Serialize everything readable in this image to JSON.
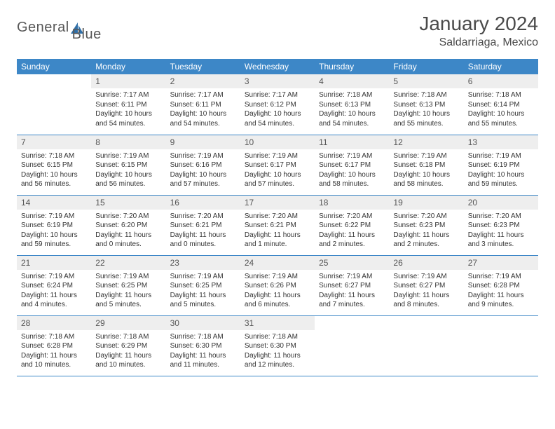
{
  "logo": {
    "part1": "General",
    "part2": "Blue"
  },
  "title": "January 2024",
  "location": "Saldarriaga, Mexico",
  "colors": {
    "header_bg": "#3d87c7",
    "header_fg": "#ffffff",
    "daynum_bg": "#eeeeee",
    "daynum_fg": "#555555",
    "cell_border": "#3d87c7",
    "page_bg": "#ffffff",
    "text": "#333333",
    "logo_gray": "#585858",
    "logo_blue": "#2f6fa8"
  },
  "fonts": {
    "title_pt": 28,
    "location_pt": 16,
    "header_pt": 12,
    "daynum_pt": 12,
    "body_pt": 10
  },
  "weekdays": [
    "Sunday",
    "Monday",
    "Tuesday",
    "Wednesday",
    "Thursday",
    "Friday",
    "Saturday"
  ],
  "weeks": [
    [
      null,
      {
        "n": "1",
        "sr": "7:17 AM",
        "ss": "6:11 PM",
        "dl": "10 hours and 54 minutes."
      },
      {
        "n": "2",
        "sr": "7:17 AM",
        "ss": "6:11 PM",
        "dl": "10 hours and 54 minutes."
      },
      {
        "n": "3",
        "sr": "7:17 AM",
        "ss": "6:12 PM",
        "dl": "10 hours and 54 minutes."
      },
      {
        "n": "4",
        "sr": "7:18 AM",
        "ss": "6:13 PM",
        "dl": "10 hours and 54 minutes."
      },
      {
        "n": "5",
        "sr": "7:18 AM",
        "ss": "6:13 PM",
        "dl": "10 hours and 55 minutes."
      },
      {
        "n": "6",
        "sr": "7:18 AM",
        "ss": "6:14 PM",
        "dl": "10 hours and 55 minutes."
      }
    ],
    [
      {
        "n": "7",
        "sr": "7:18 AM",
        "ss": "6:15 PM",
        "dl": "10 hours and 56 minutes."
      },
      {
        "n": "8",
        "sr": "7:19 AM",
        "ss": "6:15 PM",
        "dl": "10 hours and 56 minutes."
      },
      {
        "n": "9",
        "sr": "7:19 AM",
        "ss": "6:16 PM",
        "dl": "10 hours and 57 minutes."
      },
      {
        "n": "10",
        "sr": "7:19 AM",
        "ss": "6:17 PM",
        "dl": "10 hours and 57 minutes."
      },
      {
        "n": "11",
        "sr": "7:19 AM",
        "ss": "6:17 PM",
        "dl": "10 hours and 58 minutes."
      },
      {
        "n": "12",
        "sr": "7:19 AM",
        "ss": "6:18 PM",
        "dl": "10 hours and 58 minutes."
      },
      {
        "n": "13",
        "sr": "7:19 AM",
        "ss": "6:19 PM",
        "dl": "10 hours and 59 minutes."
      }
    ],
    [
      {
        "n": "14",
        "sr": "7:19 AM",
        "ss": "6:19 PM",
        "dl": "10 hours and 59 minutes."
      },
      {
        "n": "15",
        "sr": "7:20 AM",
        "ss": "6:20 PM",
        "dl": "11 hours and 0 minutes."
      },
      {
        "n": "16",
        "sr": "7:20 AM",
        "ss": "6:21 PM",
        "dl": "11 hours and 0 minutes."
      },
      {
        "n": "17",
        "sr": "7:20 AM",
        "ss": "6:21 PM",
        "dl": "11 hours and 1 minute."
      },
      {
        "n": "18",
        "sr": "7:20 AM",
        "ss": "6:22 PM",
        "dl": "11 hours and 2 minutes."
      },
      {
        "n": "19",
        "sr": "7:20 AM",
        "ss": "6:23 PM",
        "dl": "11 hours and 2 minutes."
      },
      {
        "n": "20",
        "sr": "7:20 AM",
        "ss": "6:23 PM",
        "dl": "11 hours and 3 minutes."
      }
    ],
    [
      {
        "n": "21",
        "sr": "7:19 AM",
        "ss": "6:24 PM",
        "dl": "11 hours and 4 minutes."
      },
      {
        "n": "22",
        "sr": "7:19 AM",
        "ss": "6:25 PM",
        "dl": "11 hours and 5 minutes."
      },
      {
        "n": "23",
        "sr": "7:19 AM",
        "ss": "6:25 PM",
        "dl": "11 hours and 5 minutes."
      },
      {
        "n": "24",
        "sr": "7:19 AM",
        "ss": "6:26 PM",
        "dl": "11 hours and 6 minutes."
      },
      {
        "n": "25",
        "sr": "7:19 AM",
        "ss": "6:27 PM",
        "dl": "11 hours and 7 minutes."
      },
      {
        "n": "26",
        "sr": "7:19 AM",
        "ss": "6:27 PM",
        "dl": "11 hours and 8 minutes."
      },
      {
        "n": "27",
        "sr": "7:19 AM",
        "ss": "6:28 PM",
        "dl": "11 hours and 9 minutes."
      }
    ],
    [
      {
        "n": "28",
        "sr": "7:18 AM",
        "ss": "6:28 PM",
        "dl": "11 hours and 10 minutes."
      },
      {
        "n": "29",
        "sr": "7:18 AM",
        "ss": "6:29 PM",
        "dl": "11 hours and 10 minutes."
      },
      {
        "n": "30",
        "sr": "7:18 AM",
        "ss": "6:30 PM",
        "dl": "11 hours and 11 minutes."
      },
      {
        "n": "31",
        "sr": "7:18 AM",
        "ss": "6:30 PM",
        "dl": "11 hours and 12 minutes."
      },
      null,
      null,
      null
    ]
  ],
  "labels": {
    "sunrise": "Sunrise: ",
    "sunset": "Sunset: ",
    "daylight": "Daylight: "
  }
}
